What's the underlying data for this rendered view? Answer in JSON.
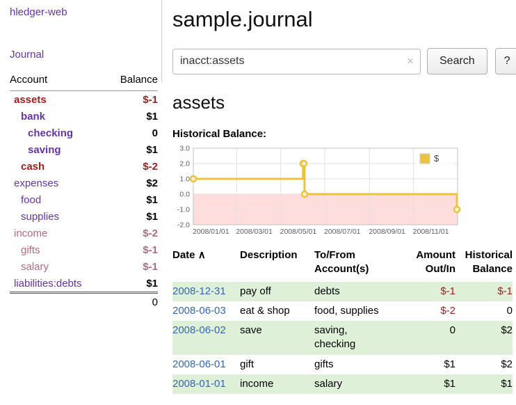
{
  "colors": {
    "link_purple": "#6633aa",
    "negative_strong": "#a02020",
    "negative_muted": "#b36a7d",
    "date_link_blue": "#3366bb",
    "row_highlight_green": "#dff0d8",
    "chart_line_yellow": "#edc240",
    "chart_negative_fill": "#ffdddd"
  },
  "app": {
    "title": "hledger-web",
    "nav_journal": "Journal"
  },
  "sidebar": {
    "headers": {
      "account": "Account",
      "balance": "Balance"
    },
    "accounts": [
      {
        "name": "assets",
        "balance": "$-1",
        "indent": 0,
        "style": "bold-neg"
      },
      {
        "name": "bank",
        "balance": "$1",
        "indent": 1,
        "style": "bold"
      },
      {
        "name": "checking",
        "balance": "0",
        "indent": 2,
        "style": "bold"
      },
      {
        "name": "saving",
        "balance": "$1",
        "indent": 2,
        "style": "bold"
      },
      {
        "name": "cash",
        "balance": "$-2",
        "indent": 1,
        "style": "bold-neg"
      },
      {
        "name": "expenses",
        "balance": "$2",
        "indent": 0,
        "style": "plain"
      },
      {
        "name": "food",
        "balance": "$1",
        "indent": 1,
        "style": "plain"
      },
      {
        "name": "supplies",
        "balance": "$1",
        "indent": 1,
        "style": "plain"
      },
      {
        "name": "income",
        "balance": "$-2",
        "indent": 0,
        "style": "muted-neg"
      },
      {
        "name": "gifts",
        "balance": "$-1",
        "indent": 1,
        "style": "muted-neg"
      },
      {
        "name": "salary",
        "balance": "$-1",
        "indent": 1,
        "style": "muted-neg"
      },
      {
        "name": "liabilities:debts",
        "balance": "$1",
        "indent": 0,
        "style": "plain"
      }
    ],
    "total": "0"
  },
  "header": {
    "title": "sample.journal"
  },
  "search": {
    "value": "inacct:assets",
    "clear_icon": "×",
    "button_label": "Search",
    "help_label": "?"
  },
  "main": {
    "account_heading": "assets",
    "chart_label": "Historical Balance:"
  },
  "chart_data": {
    "type": "line",
    "title": "Historical Balance",
    "steps": true,
    "legend": {
      "label": "$",
      "position": "top-right"
    },
    "series": [
      {
        "name": "$",
        "color": "#edc240",
        "points": [
          {
            "x": "2008-01-01",
            "y": 1
          },
          {
            "x": "2008-06-01",
            "y": 2
          },
          {
            "x": "2008-06-02",
            "y": 2
          },
          {
            "x": "2008-06-03",
            "y": 0
          },
          {
            "x": "2008-12-31",
            "y": -1
          }
        ]
      }
    ],
    "xlim": [
      "2008-01-01",
      "2009-01-01"
    ],
    "ylim": [
      -2,
      3
    ],
    "yticks": [
      "3.0",
      "2.0",
      "1.0",
      "0.0",
      "-1.0",
      "-2.0"
    ],
    "xticks": [
      "2008/01/01",
      "2008/03/01",
      "2008/05/01",
      "2008/07/01",
      "2008/09/01",
      "2008/11/01"
    ],
    "grid": true,
    "negative_region_color": "#ffdddd"
  },
  "transactions": {
    "headers": {
      "date": "Date",
      "sort_indicator": "∧",
      "description": "Description",
      "accounts": "To/From\nAccount(s)",
      "amount": "Amount\nOut/In",
      "balance": "Historical\nBalance"
    },
    "rows": [
      {
        "date": "2008-12-31",
        "description": "pay off",
        "accounts": "debts",
        "amount": "$-1",
        "balance": "$-1",
        "highlight": true
      },
      {
        "date": "2008-06-03",
        "description": "eat & shop",
        "accounts": "food, supplies",
        "amount": "$-2",
        "balance": "0",
        "highlight": false
      },
      {
        "date": "2008-06-02",
        "description": "save",
        "accounts": "saving,\nchecking",
        "amount": "0",
        "balance": "$2",
        "highlight": true
      },
      {
        "date": "2008-06-01",
        "description": "gift",
        "accounts": "gifts",
        "amount": "$1",
        "balance": "$2",
        "highlight": false
      },
      {
        "date": "2008-01-01",
        "description": "income",
        "accounts": "salary",
        "amount": "$1",
        "balance": "$1",
        "highlight": true
      }
    ]
  }
}
